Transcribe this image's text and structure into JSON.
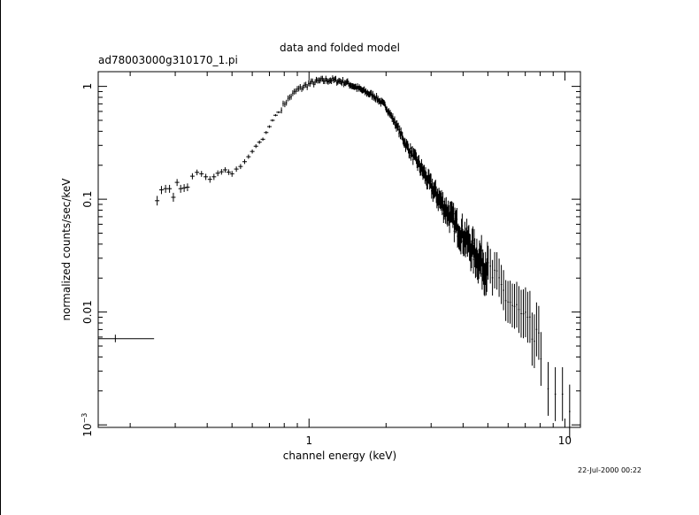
{
  "chart_data": {
    "type": "scatter",
    "title": "data and folded model",
    "subtitle": "ad78003000g310170_1.pi",
    "xlabel": "channel energy (keV)",
    "ylabel": "normalized counts/sec/keV",
    "xscale": "log",
    "yscale": "log",
    "xlim": [
      0.15,
      11.5
    ],
    "ylim": [
      0.00095,
      1.35
    ],
    "x_ticks": [
      {
        "value": 1,
        "label": "1"
      },
      {
        "value": 10,
        "label": "10"
      }
    ],
    "y_ticks": [
      {
        "value": 1,
        "label": "1"
      },
      {
        "value": 0.1,
        "label": "0.1"
      },
      {
        "value": 0.01,
        "label": "0.01"
      }
    ],
    "y_tick_special": {
      "value": 0.001,
      "base": "10",
      "exponent": "−3"
    },
    "timestamp": "22-Jul-2000 00:22",
    "series": [
      {
        "points": [
          {
            "x": 0.175,
            "xlo": 0.15,
            "xhi": 0.248,
            "y": 0.0058,
            "ylo": 0.0054,
            "yhi": 0.0063
          },
          {
            "x": 0.255,
            "y": 0.097,
            "ylo": 0.088,
            "yhi": 0.107
          },
          {
            "x": 0.265,
            "y": 0.121,
            "ylo": 0.111,
            "yhi": 0.131
          },
          {
            "x": 0.275,
            "y": 0.124,
            "ylo": 0.114,
            "yhi": 0.134
          },
          {
            "x": 0.285,
            "y": 0.124,
            "ylo": 0.114,
            "yhi": 0.134
          },
          {
            "x": 0.295,
            "y": 0.104,
            "ylo": 0.095,
            "yhi": 0.114
          },
          {
            "x": 0.305,
            "y": 0.141,
            "ylo": 0.131,
            "yhi": 0.151
          },
          {
            "x": 0.315,
            "y": 0.124,
            "ylo": 0.114,
            "yhi": 0.134
          },
          {
            "x": 0.325,
            "y": 0.126,
            "ylo": 0.116,
            "yhi": 0.136
          },
          {
            "x": 0.335,
            "y": 0.128,
            "ylo": 0.118,
            "yhi": 0.138
          },
          {
            "x": 0.35,
            "y": 0.16,
            "ylo": 0.15,
            "yhi": 0.17
          },
          {
            "x": 0.365,
            "y": 0.173,
            "ylo": 0.163,
            "yhi": 0.183
          },
          {
            "x": 0.38,
            "y": 0.168,
            "ylo": 0.158,
            "yhi": 0.178
          },
          {
            "x": 0.395,
            "y": 0.158,
            "ylo": 0.148,
            "yhi": 0.168
          },
          {
            "x": 0.41,
            "y": 0.15,
            "ylo": 0.14,
            "yhi": 0.16
          },
          {
            "x": 0.425,
            "y": 0.158,
            "ylo": 0.148,
            "yhi": 0.168
          },
          {
            "x": 0.44,
            "y": 0.17,
            "ylo": 0.16,
            "yhi": 0.18
          },
          {
            "x": 0.455,
            "y": 0.175,
            "ylo": 0.165,
            "yhi": 0.185
          },
          {
            "x": 0.47,
            "y": 0.182,
            "ylo": 0.172,
            "yhi": 0.192
          },
          {
            "x": 0.485,
            "y": 0.174,
            "ylo": 0.164,
            "yhi": 0.184
          },
          {
            "x": 0.5,
            "y": 0.168,
            "ylo": 0.158,
            "yhi": 0.178
          },
          {
            "x": 0.52,
            "y": 0.185,
            "ylo": 0.175,
            "yhi": 0.195
          },
          {
            "x": 0.54,
            "y": 0.195,
            "ylo": 0.185,
            "yhi": 0.205
          },
          {
            "x": 0.56,
            "y": 0.215,
            "ylo": 0.205,
            "yhi": 0.226
          },
          {
            "x": 0.58,
            "y": 0.238,
            "ylo": 0.228,
            "yhi": 0.249
          },
          {
            "x": 0.6,
            "y": 0.265,
            "ylo": 0.254,
            "yhi": 0.276
          },
          {
            "x": 0.62,
            "y": 0.295,
            "ylo": 0.284,
            "yhi": 0.307
          },
          {
            "x": 0.64,
            "y": 0.32,
            "ylo": 0.309,
            "yhi": 0.332
          },
          {
            "x": 0.66,
            "y": 0.34,
            "ylo": 0.329,
            "yhi": 0.352
          },
          {
            "x": 0.68,
            "y": 0.39,
            "ylo": 0.378,
            "yhi": 0.402
          },
          {
            "x": 0.7,
            "y": 0.44,
            "ylo": 0.428,
            "yhi": 0.452
          },
          {
            "x": 0.72,
            "y": 0.5,
            "ylo": 0.488,
            "yhi": 0.512
          },
          {
            "x": 0.74,
            "y": 0.555,
            "ylo": 0.543,
            "yhi": 0.567
          },
          {
            "x": 0.76,
            "y": 0.59,
            "ylo": 0.578,
            "yhi": 0.602
          }
        ]
      }
    ]
  }
}
